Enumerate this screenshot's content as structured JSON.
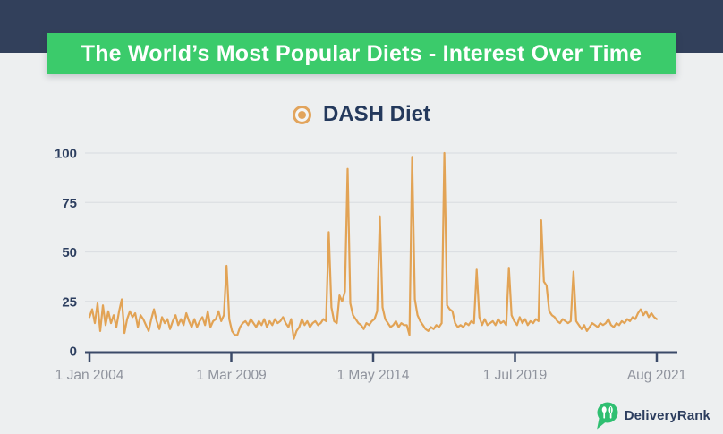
{
  "page": {
    "background": "#edeff0"
  },
  "header": {
    "top_bar_color": "#32405b",
    "banner_color": "#3bcb6b",
    "title": "The World’s Most Popular Diets - Interest Over Time",
    "title_color": "#ffffff"
  },
  "legend": {
    "series_label": "DASH Diet",
    "marker_color": "#e2a45c",
    "label_color": "#24395c"
  },
  "footer": {
    "brand": "DeliveryRank",
    "logo_color": "#2fbf71",
    "text_color": "#2c3d5e"
  },
  "chart_data": {
    "type": "line",
    "title": "The World’s Most Popular Diets - Interest Over Time",
    "series_name": "DASH Diet",
    "line_color": "#e2a355",
    "axis_color": "#3b4a68",
    "gridline_color": "#dcdfe3",
    "ytick_label_color": "#2c3e5f",
    "xtick_label_color": "#8f939d",
    "grid": true,
    "legend_position": "top-center",
    "ylim": [
      0,
      100
    ],
    "yticks": [
      0,
      25,
      50,
      75,
      100
    ],
    "xticks": [
      {
        "label": "1 Jan 2004",
        "pos": 0.0
      },
      {
        "label": "1 Mar 2009",
        "pos": 0.25
      },
      {
        "label": "1 May 2014",
        "pos": 0.5
      },
      {
        "label": "1 Jul 2019",
        "pos": 0.75
      },
      {
        "label": "Aug 2021",
        "pos": 1.0
      }
    ],
    "x_start": "Jan 2004",
    "x_end": "Aug 2021",
    "frequency": "monthly",
    "values": [
      17,
      21,
      14,
      24,
      10,
      23,
      13,
      20,
      14,
      18,
      12,
      20,
      26,
      9,
      16,
      20,
      17,
      19,
      12,
      18,
      16,
      13,
      10,
      16,
      21,
      15,
      11,
      17,
      14,
      16,
      11,
      15,
      18,
      13,
      16,
      13,
      19,
      15,
      12,
      16,
      12,
      15,
      17,
      13,
      20,
      12,
      15,
      16,
      20,
      15,
      18,
      43,
      16,
      10,
      8,
      8,
      12,
      14,
      15,
      13,
      16,
      14,
      12,
      15,
      13,
      16,
      12,
      15,
      13,
      16,
      14,
      15,
      17,
      14,
      12,
      16,
      6,
      10,
      12,
      16,
      13,
      15,
      12,
      14,
      15,
      13,
      14,
      16,
      15,
      60,
      22,
      15,
      14,
      28,
      25,
      30,
      92,
      24,
      18,
      16,
      14,
      13,
      11,
      14,
      13,
      15,
      16,
      20,
      68,
      22,
      16,
      14,
      12,
      13,
      15,
      12,
      14,
      13,
      13,
      8,
      98,
      26,
      18,
      15,
      13,
      11,
      10,
      12,
      11,
      13,
      12,
      14,
      100,
      23,
      21,
      20,
      14,
      12,
      13,
      12,
      14,
      13,
      15,
      14,
      41,
      17,
      13,
      16,
      13,
      14,
      15,
      13,
      16,
      14,
      15,
      13,
      42,
      18,
      15,
      13,
      17,
      14,
      16,
      13,
      15,
      14,
      16,
      15,
      66,
      35,
      33,
      20,
      18,
      17,
      15,
      14,
      16,
      15,
      14,
      15,
      40,
      15,
      13,
      11,
      13,
      10,
      12,
      14,
      13,
      12,
      14,
      13,
      14,
      16,
      13,
      12,
      14,
      13,
      15,
      14,
      16,
      15,
      17,
      16,
      19,
      21,
      18,
      20,
      17,
      19,
      17,
      16
    ]
  }
}
